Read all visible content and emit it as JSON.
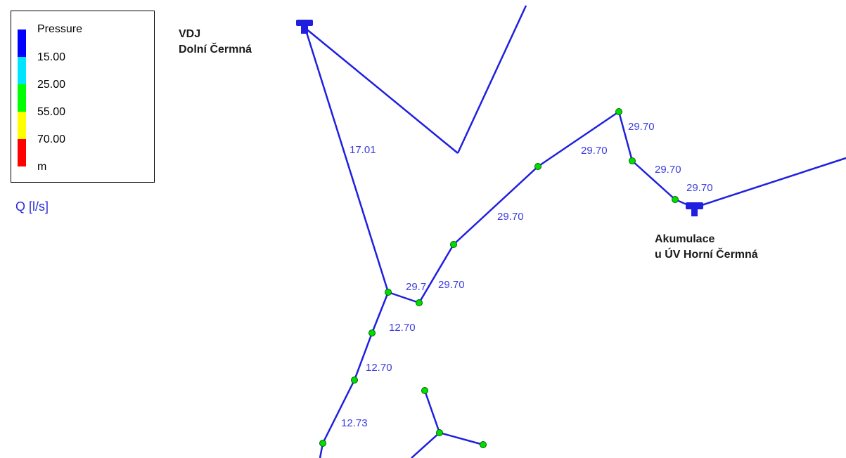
{
  "legend": {
    "title": "Pressure",
    "levels": [
      {
        "label": "15.00",
        "color": "#0000ff"
      },
      {
        "label": "25.00",
        "color": "#00e5ff"
      },
      {
        "label": "55.00",
        "color": "#00ff00"
      },
      {
        "label": "70.00",
        "color": "#ffff00"
      },
      {
        "label": "m",
        "color": "#ff0000"
      }
    ]
  },
  "flow_title": "Q [l/s]",
  "nodes": {
    "vdj": {
      "line1": "VDJ",
      "line2": "Dolní Čermná"
    },
    "akumulace": {
      "line1": "Akumulace",
      "line2": "u ÚV Horní Čermná"
    }
  },
  "pipe_labels": [
    "17.01",
    "29.70",
    "29.70",
    "29.70",
    "29.70",
    "29.70",
    "29.7",
    "29.70",
    "12.70",
    "12.70",
    "12.73"
  ],
  "colors": {
    "pipe": "#1f1fe0",
    "junction": "#00dd00",
    "junction_stroke": "#006600",
    "label": "#3b3be0"
  }
}
